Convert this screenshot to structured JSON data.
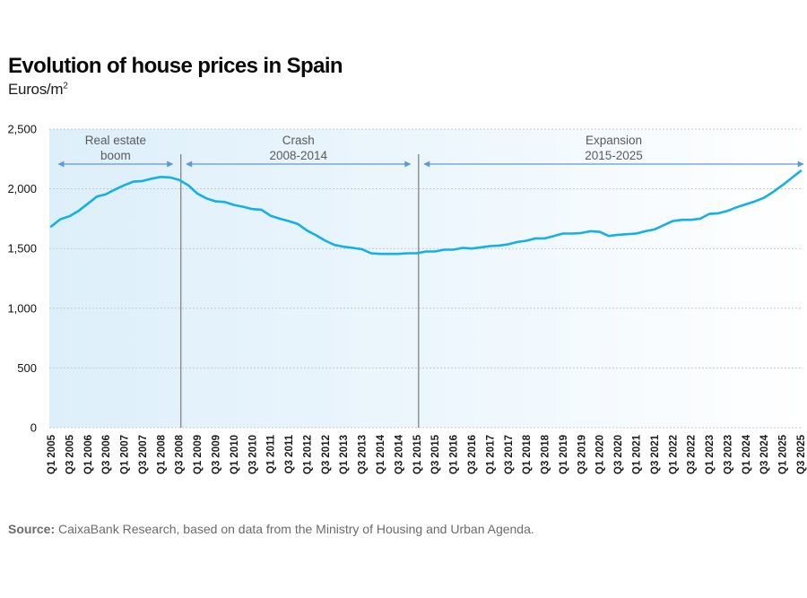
{
  "header": {
    "title": "Evolution of house prices in Spain",
    "subtitle_base": "Euros/m",
    "subtitle_sup": "2"
  },
  "footer": {
    "source_label": "Source:",
    "source_text": " CaixaBank Research, based on data from the Ministry of Housing and Urban Agenda."
  },
  "colors": {
    "line": "#14b0e6",
    "arrow": "#5b9bd5",
    "divider": "#7a7a7a",
    "grid": "#c8c8c8",
    "bg_left": "#ddeffa",
    "bg_right": "#ffffff"
  },
  "chart_data": {
    "type": "line",
    "title": "Evolution of house prices in Spain",
    "ylabel": "Euros/m²",
    "xlabel": "",
    "ylim": [
      0,
      2500
    ],
    "yticks": [
      0,
      500,
      1000,
      1500,
      2000,
      2500
    ],
    "ytick_labels": [
      "0",
      "500",
      "1,000",
      "1,500",
      "2,000",
      "2,500"
    ],
    "grid": "horizontal dotted",
    "x_tick_labels": [
      "Q1 2005",
      "Q3 2005",
      "Q1 2006",
      "Q3 2006",
      "Q1 2007",
      "Q3 2007",
      "Q1 2008",
      "Q3 2008",
      "Q1 2009",
      "Q3 2009",
      "Q1 2010",
      "Q3 2010",
      "Q1 2011",
      "Q3 2011",
      "Q1 2012",
      "Q3 2012",
      "Q1 2013",
      "Q3 2013",
      "Q1 2014",
      "Q3 2014",
      "Q1 2015",
      "Q3 2015",
      "Q1 2016",
      "Q3 2016",
      "Q1 2017",
      "Q3 2017",
      "Q1 2018",
      "Q3 2018",
      "Q1 2019",
      "Q3 2019",
      "Q1 2020",
      "Q3 2020",
      "Q1 2021",
      "Q3 2021",
      "Q1 2022",
      "Q3 2022",
      "Q1 2023",
      "Q3 2023",
      "Q1 2024",
      "Q3 2024",
      "Q1 2025",
      "Q3 2025"
    ],
    "series": [
      {
        "name": "House price (Euros/m²)",
        "x": [
          "Q1 2005",
          "Q2 2005",
          "Q3 2005",
          "Q4 2005",
          "Q1 2006",
          "Q2 2006",
          "Q3 2006",
          "Q4 2006",
          "Q1 2007",
          "Q2 2007",
          "Q3 2007",
          "Q4 2007",
          "Q1 2008",
          "Q2 2008",
          "Q3 2008",
          "Q4 2008",
          "Q1 2009",
          "Q2 2009",
          "Q3 2009",
          "Q4 2009",
          "Q1 2010",
          "Q2 2010",
          "Q3 2010",
          "Q4 2010",
          "Q1 2011",
          "Q2 2011",
          "Q3 2011",
          "Q4 2011",
          "Q1 2012",
          "Q2 2012",
          "Q3 2012",
          "Q4 2012",
          "Q1 2013",
          "Q2 2013",
          "Q3 2013",
          "Q4 2013",
          "Q1 2014",
          "Q2 2014",
          "Q3 2014",
          "Q4 2014",
          "Q1 2015",
          "Q2 2015",
          "Q3 2015",
          "Q4 2015",
          "Q1 2016",
          "Q2 2016",
          "Q3 2016",
          "Q4 2016",
          "Q1 2017",
          "Q2 2017",
          "Q3 2017",
          "Q4 2017",
          "Q1 2018",
          "Q2 2018",
          "Q3 2018",
          "Q4 2018",
          "Q1 2019",
          "Q2 2019",
          "Q3 2019",
          "Q4 2019",
          "Q1 2020",
          "Q2 2020",
          "Q3 2020",
          "Q4 2020",
          "Q1 2021",
          "Q2 2021",
          "Q3 2021",
          "Q4 2021",
          "Q1 2022",
          "Q2 2022",
          "Q3 2022",
          "Q4 2022",
          "Q1 2023",
          "Q2 2023",
          "Q3 2023",
          "Q4 2023",
          "Q1 2024",
          "Q2 2024",
          "Q3 2024",
          "Q4 2024",
          "Q1 2025",
          "Q2 2025",
          "Q3 2025"
        ],
        "values": [
          1685,
          1745,
          1770,
          1815,
          1875,
          1935,
          1955,
          1995,
          2030,
          2060,
          2065,
          2085,
          2100,
          2095,
          2075,
          2030,
          1960,
          1920,
          1895,
          1890,
          1865,
          1850,
          1830,
          1825,
          1775,
          1750,
          1730,
          1705,
          1650,
          1610,
          1565,
          1530,
          1515,
          1505,
          1495,
          1460,
          1455,
          1455,
          1455,
          1460,
          1460,
          1475,
          1475,
          1490,
          1490,
          1505,
          1500,
          1510,
          1520,
          1525,
          1535,
          1555,
          1565,
          1585,
          1585,
          1605,
          1625,
          1625,
          1630,
          1645,
          1640,
          1605,
          1615,
          1620,
          1625,
          1645,
          1660,
          1695,
          1730,
          1740,
          1740,
          1750,
          1790,
          1795,
          1815,
          1845,
          1870,
          1895,
          1925,
          1975,
          2030,
          2090,
          2150
        ]
      }
    ],
    "dividers": [
      "Q3 2008",
      "Q1 2015"
    ],
    "annotations": [
      {
        "label_lines": [
          "Real estate",
          "boom"
        ],
        "arrow_from": "Q2 2005",
        "arrow_to": "Q2 2008"
      },
      {
        "label_lines": [
          "Crash",
          "2008-2014"
        ],
        "arrow_from": "Q4 2008",
        "arrow_to": "Q4 2014"
      },
      {
        "label_lines": [
          "Expansion",
          "2015-2025"
        ],
        "arrow_from": "Q2 2015",
        "arrow_to": "Q3 2025"
      }
    ]
  }
}
